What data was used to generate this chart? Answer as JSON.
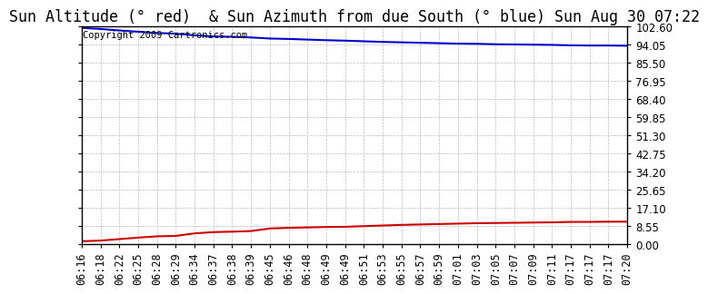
{
  "title": "Sun Altitude (° red)  & Sun Azimuth from due South (° blue) Sun Aug 30 07:22",
  "copyright_text": "Copyright 2009 Cartronics.com",
  "background_color": "#ffffff",
  "plot_bg_color": "#ffffff",
  "grid_color": "#bbbbbb",
  "x_labels": [
    "06:16",
    "06:18",
    "06:22",
    "06:25",
    "06:28",
    "06:29",
    "06:34",
    "06:37",
    "06:38",
    "06:39",
    "06:45",
    "06:46",
    "06:48",
    "06:49",
    "06:49",
    "06:51",
    "06:53",
    "06:55",
    "06:57",
    "06:59",
    "07:01",
    "07:03",
    "07:05",
    "07:07",
    "07:09",
    "07:11",
    "07:17",
    "07:17",
    "07:17",
    "07:20"
  ],
  "yticks": [
    0.0,
    8.55,
    17.1,
    25.65,
    34.2,
    42.75,
    51.3,
    59.85,
    68.4,
    76.95,
    85.5,
    94.05,
    102.6
  ],
  "ymin": 0.0,
  "ymax": 102.6,
  "blue_data": [
    102.0,
    101.5,
    100.8,
    100.2,
    99.6,
    99.3,
    98.5,
    98.0,
    97.8,
    97.5,
    97.0,
    96.8,
    96.5,
    96.2,
    96.0,
    95.7,
    95.4,
    95.2,
    95.0,
    94.8,
    94.6,
    94.5,
    94.3,
    94.2,
    94.1,
    94.0,
    93.8,
    93.7,
    93.7,
    93.6
  ],
  "red_data": [
    1.5,
    1.8,
    2.5,
    3.2,
    3.8,
    4.0,
    5.2,
    5.8,
    6.0,
    6.3,
    7.5,
    7.8,
    8.0,
    8.2,
    8.3,
    8.6,
    8.9,
    9.2,
    9.4,
    9.6,
    9.8,
    10.0,
    10.1,
    10.2,
    10.3,
    10.4,
    10.6,
    10.6,
    10.7,
    10.7
  ],
  "blue_color": "#0000cc",
  "red_color": "#cc0000",
  "line_width": 1.5,
  "title_fontsize": 12,
  "tick_fontsize": 8.5,
  "copyright_fontsize": 7.5
}
